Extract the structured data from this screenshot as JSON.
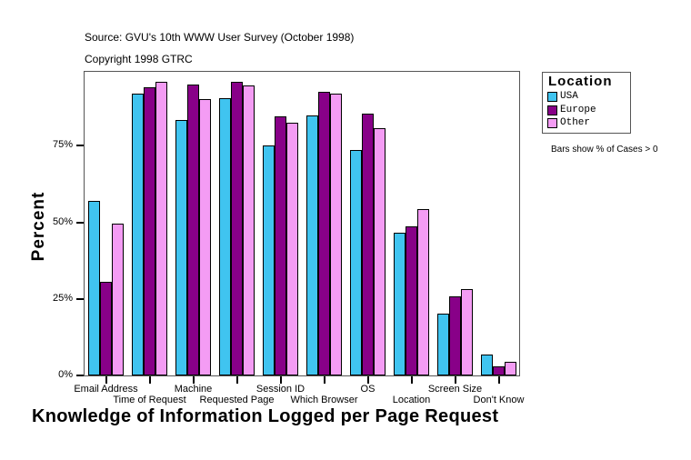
{
  "header": {
    "source": "Source: GVU's 10th WWW User Survey (October 1998)",
    "copyright": "Copyright 1998 GTRC"
  },
  "legend": {
    "title": "Location",
    "items": [
      {
        "label": "USA",
        "color": "#40C4F0"
      },
      {
        "label": "Europe",
        "color": "#880088"
      },
      {
        "label": "Other",
        "color": "#F49CF4"
      }
    ],
    "note": "Bars show % of Cases > 0"
  },
  "axes": {
    "ylabel": "Percent",
    "xlabel": "Knowledge of Information Logged per Page Request",
    "yticks": [
      "0%",
      "25%",
      "50%",
      "75%"
    ]
  },
  "chart_data": {
    "type": "bar",
    "title": "Knowledge of Information Logged per Page Request",
    "xlabel": "Knowledge of Information Logged per Page Request",
    "ylabel": "Percent",
    "ylim": [
      0,
      100
    ],
    "yticks": [
      0,
      25,
      50,
      75
    ],
    "grid": false,
    "legend_position": "right",
    "legend_title": "Location",
    "annotations": [
      "Source: GVU's 10th WWW User Survey (October 1998)",
      "Copyright 1998 GTRC",
      "Bars show % of Cases > 0"
    ],
    "categories": [
      "Email Address",
      "Time of Request",
      "Machine",
      "Requested Page",
      "Session ID",
      "Which Browser",
      "OS",
      "Location",
      "Screen Size",
      "Don't Know"
    ],
    "series": [
      {
        "name": "USA",
        "color": "#40C4F0",
        "values": [
          56.6,
          91.6,
          83.0,
          90.1,
          74.7,
          84.5,
          73.2,
          46.2,
          19.8,
          6.4
        ]
      },
      {
        "name": "Europe",
        "color": "#880088",
        "values": [
          30.2,
          93.7,
          94.7,
          95.5,
          84.2,
          92.2,
          85.1,
          48.3,
          25.4,
          2.6
        ]
      },
      {
        "name": "Other",
        "color": "#F49CF4",
        "values": [
          49.2,
          95.5,
          89.8,
          94.3,
          82.1,
          91.6,
          80.3,
          53.9,
          27.8,
          4.1
        ]
      }
    ]
  }
}
